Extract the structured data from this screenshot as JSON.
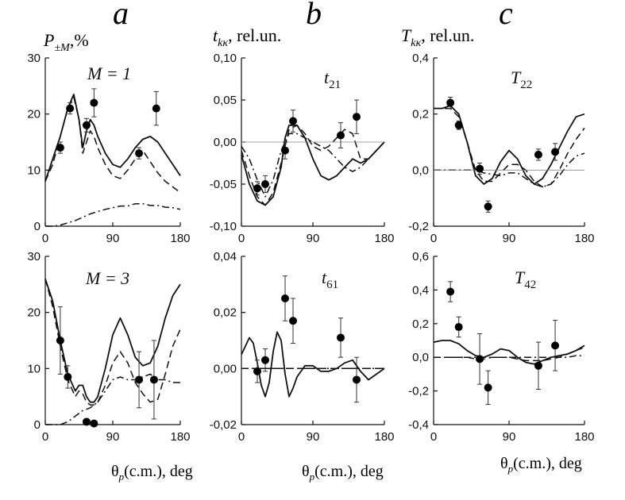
{
  "figure": {
    "letters": [
      "a",
      "b",
      "c"
    ],
    "ylabels": {
      "a": {
        "main": "P",
        "sub": "±M",
        "rest": ",%"
      },
      "b": {
        "main": "t",
        "sub": "kκ",
        "rest": ", rel.un."
      },
      "c": {
        "main": "T",
        "sub": "kκ",
        "rest": ", rel.un."
      }
    },
    "xlabel": {
      "prefix": "θ",
      "sub": "p",
      "rest": "(c.m.), deg"
    }
  },
  "chart_data": [
    {
      "id": "a-top",
      "type": "line",
      "annotation": "M = 1",
      "xlim": [
        0,
        180
      ],
      "ylim": [
        0,
        30
      ],
      "xticks": [
        "0",
        "90",
        "180"
      ],
      "yticks": [
        "0",
        "10",
        "20",
        "30"
      ],
      "series": [
        {
          "style": "solid",
          "x": [
            0,
            10,
            20,
            30,
            38,
            45,
            50,
            55,
            60,
            65,
            70,
            80,
            90,
            100,
            110,
            120,
            130,
            140,
            150,
            160,
            170,
            180
          ],
          "y": [
            8,
            12,
            16,
            21,
            23.5,
            19,
            14,
            17,
            19,
            18,
            16,
            13,
            11,
            10.5,
            12,
            14,
            15.5,
            16,
            15,
            13,
            11,
            9
          ]
        },
        {
          "style": "dashed",
          "x": [
            0,
            10,
            20,
            30,
            38,
            45,
            50,
            55,
            60,
            65,
            70,
            80,
            90,
            100,
            110,
            120,
            130,
            140,
            150,
            160,
            170,
            180
          ],
          "y": [
            8,
            11,
            16,
            21,
            23,
            19,
            13,
            15,
            17,
            16,
            14,
            11,
            9,
            8.5,
            10,
            12,
            13.5,
            11.5,
            9.5,
            8,
            7,
            6
          ]
        },
        {
          "style": "dashdot",
          "x": [
            0,
            10,
            20,
            30,
            40,
            50,
            60,
            70,
            80,
            90,
            100,
            110,
            120,
            130,
            140,
            150,
            160,
            170,
            180
          ],
          "y": [
            0,
            0,
            0.2,
            0.6,
            1,
            1.6,
            2.2,
            2.6,
            3,
            3.3,
            3.6,
            3.6,
            4,
            4,
            3.7,
            3.7,
            3.4,
            3.3,
            3
          ]
        }
      ],
      "points": [
        {
          "x": 20,
          "y": 14,
          "err": 1
        },
        {
          "x": 33,
          "y": 21,
          "err": 1
        },
        {
          "x": 55,
          "y": 18,
          "err": 1.2
        },
        {
          "x": 65,
          "y": 22,
          "err": 2.5
        },
        {
          "x": 125,
          "y": 13,
          "err": 1
        },
        {
          "x": 148,
          "y": 21,
          "err": 3
        }
      ]
    },
    {
      "id": "b-top",
      "type": "line",
      "annotation": "t21",
      "xlim": [
        0,
        180
      ],
      "ylim": [
        -0.1,
        0.1
      ],
      "xticks": [
        "0",
        "90",
        "180"
      ],
      "yticks": [
        "-0,10",
        "-0,05",
        "0,00",
        "0,05",
        "0,10"
      ],
      "series": [
        {
          "style": "solid",
          "x": [
            0,
            10,
            20,
            30,
            40,
            50,
            55,
            60,
            70,
            80,
            90,
            100,
            110,
            120,
            130,
            140,
            150,
            160,
            170,
            180
          ],
          "y": [
            -0.015,
            -0.05,
            -0.07,
            -0.075,
            -0.065,
            -0.03,
            0.005,
            0.02,
            0.02,
            0.005,
            -0.02,
            -0.04,
            -0.045,
            -0.04,
            -0.03,
            -0.02,
            -0.025,
            -0.02,
            -0.01,
            0
          ]
        },
        {
          "style": "dashed",
          "x": [
            0,
            10,
            20,
            30,
            40,
            50,
            55,
            60,
            70,
            80,
            90,
            100,
            110,
            120,
            130,
            140,
            150,
            160,
            170,
            180
          ],
          "y": [
            -0.01,
            -0.04,
            -0.065,
            -0.075,
            -0.06,
            -0.025,
            -0.005,
            0.015,
            0.02,
            0.01,
            -0.005,
            -0.01,
            -0.005,
            0.005,
            0.015,
            0.01,
            -0.02,
            -0.02,
            -0.01,
            0
          ]
        },
        {
          "style": "dashdot",
          "x": [
            0,
            10,
            20,
            30,
            40,
            50,
            60,
            70,
            80,
            90,
            100,
            110,
            120,
            130,
            140,
            150,
            160,
            170,
            180
          ],
          "y": [
            -0.005,
            -0.02,
            -0.045,
            -0.065,
            -0.045,
            -0.01,
            0.01,
            0.01,
            0.005,
            0,
            -0.005,
            -0.01,
            -0.02,
            -0.03,
            -0.035,
            -0.03,
            -0.02,
            -0.01,
            0
          ]
        },
        {
          "style": "thin",
          "x": [
            0,
            180
          ],
          "y": [
            0,
            0
          ]
        }
      ],
      "points": [
        {
          "x": 20,
          "y": -0.055,
          "err": 0.008
        },
        {
          "x": 30,
          "y": -0.05,
          "err": 0.01
        },
        {
          "x": 55,
          "y": -0.01,
          "err": 0.01
        },
        {
          "x": 65,
          "y": 0.025,
          "err": 0.013
        },
        {
          "x": 125,
          "y": 0.008,
          "err": 0.015
        },
        {
          "x": 145,
          "y": 0.03,
          "err": 0.02
        }
      ]
    },
    {
      "id": "c-top",
      "type": "line",
      "annotation": "T22",
      "xlim": [
        0,
        180
      ],
      "ylim": [
        -0.2,
        0.4
      ],
      "xticks": [
        "0",
        "90",
        "180"
      ],
      "yticks": [
        "-0,2",
        "0,0",
        "0,2",
        "0,4"
      ],
      "series": [
        {
          "style": "solid",
          "x": [
            0,
            10,
            20,
            30,
            40,
            50,
            60,
            70,
            80,
            90,
            100,
            110,
            120,
            130,
            140,
            150,
            160,
            170,
            180
          ],
          "y": [
            0.22,
            0.22,
            0.23,
            0.2,
            0.1,
            -0.02,
            -0.05,
            -0.03,
            0.03,
            0.07,
            0.04,
            -0.02,
            -0.05,
            -0.03,
            0.02,
            0.08,
            0.14,
            0.19,
            0.2
          ]
        },
        {
          "style": "dashed",
          "x": [
            0,
            10,
            20,
            30,
            40,
            50,
            60,
            70,
            80,
            90,
            100,
            110,
            120,
            130,
            140,
            150,
            160,
            170,
            180
          ],
          "y": [
            0.22,
            0.22,
            0.22,
            0.19,
            0.1,
            0,
            -0.04,
            -0.04,
            -0.01,
            0.02,
            0.02,
            0,
            -0.04,
            -0.06,
            -0.05,
            0,
            0.06,
            0.11,
            0.15
          ]
        },
        {
          "style": "dashdot",
          "x": [
            0,
            10,
            20,
            30,
            40,
            50,
            60,
            70,
            80,
            90,
            100,
            110,
            120,
            130,
            140,
            150,
            160,
            170,
            180
          ],
          "y": [
            0,
            0,
            0,
            0,
            0,
            0,
            -0.01,
            -0.015,
            -0.02,
            -0.01,
            -0.01,
            -0.03,
            -0.05,
            -0.06,
            -0.05,
            -0.02,
            0.02,
            0.05,
            0.06
          ]
        },
        {
          "style": "thin",
          "x": [
            0,
            180
          ],
          "y": [
            0,
            0
          ]
        }
      ],
      "points": [
        {
          "x": 20,
          "y": 0.24,
          "err": 0.02
        },
        {
          "x": 30,
          "y": 0.16,
          "err": 0.015
        },
        {
          "x": 55,
          "y": 0.005,
          "err": 0.02
        },
        {
          "x": 65,
          "y": -0.13,
          "err": 0.02
        },
        {
          "x": 125,
          "y": 0.055,
          "err": 0.02
        },
        {
          "x": 145,
          "y": 0.065,
          "err": 0.03
        }
      ]
    },
    {
      "id": "a-bottom",
      "type": "line",
      "annotation": "M = 3",
      "xlim": [
        0,
        180
      ],
      "ylim": [
        0,
        30
      ],
      "xticks": [
        "0",
        "90",
        "180"
      ],
      "yticks": [
        "0",
        "10",
        "20",
        "30"
      ],
      "series": [
        {
          "style": "solid",
          "x": [
            0,
            10,
            20,
            30,
            40,
            45,
            50,
            55,
            60,
            65,
            70,
            80,
            90,
            100,
            110,
            120,
            130,
            140,
            150,
            160,
            170,
            180
          ],
          "y": [
            26,
            22,
            15,
            9,
            6,
            7,
            7,
            5,
            4,
            4,
            5,
            10,
            16,
            19,
            16,
            12,
            10.5,
            11,
            14,
            19,
            23,
            25
          ]
        },
        {
          "style": "dashed",
          "x": [
            0,
            10,
            20,
            30,
            40,
            45,
            50,
            55,
            60,
            65,
            70,
            80,
            90,
            100,
            110,
            120,
            130,
            140,
            150,
            160,
            170,
            180
          ],
          "y": [
            26,
            21,
            14,
            8,
            5,
            6,
            5.5,
            4,
            3.5,
            3.5,
            4,
            7,
            11,
            13,
            11,
            7.5,
            5.5,
            4,
            4.5,
            9,
            14,
            17
          ]
        },
        {
          "style": "dashdot",
          "x": [
            0,
            10,
            20,
            30,
            40,
            50,
            60,
            70,
            80,
            90,
            100,
            110,
            120,
            130,
            140,
            150,
            160,
            170,
            180
          ],
          "y": [
            0,
            0,
            0,
            0.5,
            1.5,
            2.5,
            3,
            4,
            6,
            8,
            8.5,
            8,
            8,
            8.5,
            9,
            8,
            8,
            7.5,
            7.5
          ]
        }
      ],
      "points": [
        {
          "x": 20,
          "y": 15,
          "err": 6
        },
        {
          "x": 30,
          "y": 8.5,
          "err": 2
        },
        {
          "x": 55,
          "y": 0.5,
          "err": 0.5
        },
        {
          "x": 65,
          "y": 0.2,
          "err": 0.3
        },
        {
          "x": 125,
          "y": 8,
          "err": 5
        },
        {
          "x": 145,
          "y": 8,
          "err": 7
        }
      ]
    },
    {
      "id": "b-bottom",
      "type": "line",
      "annotation": "t61",
      "xlim": [
        0,
        180
      ],
      "ylim": [
        -0.02,
        0.04
      ],
      "xticks": [
        "0",
        "90",
        "180"
      ],
      "yticks": [
        "-0,02",
        "0,00",
        "0,02",
        "0,04"
      ],
      "series": [
        {
          "style": "solid",
          "x": [
            0,
            10,
            15,
            20,
            25,
            30,
            35,
            40,
            45,
            50,
            55,
            60,
            65,
            70,
            80,
            90,
            100,
            110,
            120,
            130,
            140,
            150,
            160,
            170,
            180
          ],
          "y": [
            0.005,
            0.011,
            0.009,
            0.002,
            -0.006,
            -0.01,
            -0.005,
            0.006,
            0.013,
            0.01,
            -0.002,
            -0.01,
            -0.007,
            -0.003,
            0.001,
            0.001,
            -0.001,
            -0.001,
            0,
            0.002,
            0.003,
            -0.001,
            -0.004,
            -0.002,
            0
          ]
        },
        {
          "style": "dashed",
          "x": [
            0,
            180
          ],
          "y": [
            0,
            0
          ]
        },
        {
          "style": "dashdot",
          "x": [
            0,
            180
          ],
          "y": [
            0,
            0
          ]
        }
      ],
      "points": [
        {
          "x": 20,
          "y": -0.001,
          "err": 0.004
        },
        {
          "x": 30,
          "y": 0.003,
          "err": 0.004
        },
        {
          "x": 55,
          "y": 0.025,
          "err": 0.008
        },
        {
          "x": 65,
          "y": 0.017,
          "err": 0.008
        },
        {
          "x": 125,
          "y": 0.011,
          "err": 0.007
        },
        {
          "x": 145,
          "y": -0.004,
          "err": 0.008
        }
      ]
    },
    {
      "id": "c-bottom",
      "type": "line",
      "annotation": "T42",
      "xlim": [
        0,
        180
      ],
      "ylim": [
        -0.4,
        0.6
      ],
      "xticks": [
        "0",
        "90",
        "180"
      ],
      "yticks": [
        "-0,4",
        "-0,2",
        "0,0",
        "0,2",
        "0,4",
        "0,6"
      ],
      "series": [
        {
          "style": "solid",
          "x": [
            0,
            10,
            20,
            30,
            40,
            50,
            60,
            70,
            80,
            90,
            100,
            110,
            120,
            130,
            140,
            150,
            160,
            170,
            180
          ],
          "y": [
            0.09,
            0.1,
            0.1,
            0.08,
            0.04,
            0.01,
            0,
            0.02,
            0.05,
            0.04,
            0,
            -0.03,
            -0.04,
            -0.02,
            0,
            0.01,
            0.02,
            0.04,
            0.07
          ]
        },
        {
          "style": "dashed",
          "x": [
            0,
            10,
            20,
            30,
            40,
            50,
            60,
            70,
            80,
            90,
            100,
            110,
            120,
            130,
            140,
            150,
            160,
            170,
            180
          ],
          "y": [
            0,
            0,
            0,
            0,
            0,
            -0.01,
            -0.01,
            0,
            0,
            0,
            -0.01,
            -0.02,
            -0.02,
            -0.02,
            -0.01,
            0,
            0.02,
            0.04,
            0.06
          ]
        },
        {
          "style": "dashdot",
          "x": [
            0,
            10,
            20,
            30,
            40,
            50,
            60,
            70,
            80,
            90,
            100,
            110,
            120,
            130,
            140,
            150,
            160,
            170,
            180
          ],
          "y": [
            0,
            0,
            0,
            0,
            0,
            0,
            0,
            0,
            0,
            0,
            0,
            0,
            0,
            0,
            0,
            0,
            0,
            0.01,
            0.01
          ]
        }
      ],
      "points": [
        {
          "x": 20,
          "y": 0.39,
          "err": 0.06
        },
        {
          "x": 30,
          "y": 0.18,
          "err": 0.06
        },
        {
          "x": 55,
          "y": -0.01,
          "err": 0.15
        },
        {
          "x": 65,
          "y": -0.18,
          "err": 0.1
        },
        {
          "x": 125,
          "y": -0.05,
          "err": 0.14
        },
        {
          "x": 145,
          "y": 0.07,
          "err": 0.15
        }
      ]
    }
  ]
}
